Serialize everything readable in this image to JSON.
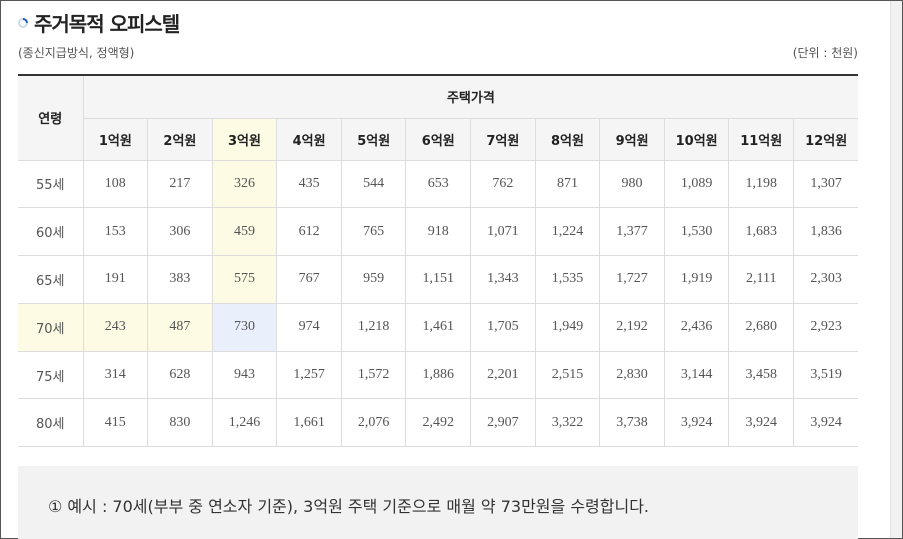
{
  "title": "주거목적 오피스텔",
  "subtitle_left": "(종신지급방식, 정액형)",
  "unit": "(단위 : 천원)",
  "table": {
    "age_header": "연령",
    "price_header": "주택가격",
    "columns": [
      "1억원",
      "2억원",
      "3억원",
      "4억원",
      "5억원",
      "6억원",
      "7억원",
      "8억원",
      "9억원",
      "10억원",
      "11억원",
      "12억원"
    ],
    "rows": [
      {
        "age": "55세",
        "values": [
          "108",
          "217",
          "326",
          "435",
          "544",
          "653",
          "762",
          "871",
          "980",
          "1,089",
          "1,198",
          "1,307"
        ]
      },
      {
        "age": "60세",
        "values": [
          "153",
          "306",
          "459",
          "612",
          "765",
          "918",
          "1,071",
          "1,224",
          "1,377",
          "1,530",
          "1,683",
          "1,836"
        ]
      },
      {
        "age": "65세",
        "values": [
          "191",
          "383",
          "575",
          "767",
          "959",
          "1,151",
          "1,343",
          "1,535",
          "1,727",
          "1,919",
          "2,111",
          "2,303"
        ]
      },
      {
        "age": "70세",
        "values": [
          "243",
          "487",
          "730",
          "974",
          "1,218",
          "1,461",
          "1,705",
          "1,949",
          "2,192",
          "2,436",
          "2,680",
          "2,923"
        ]
      },
      {
        "age": "75세",
        "values": [
          "314",
          "628",
          "943",
          "1,257",
          "1,572",
          "1,886",
          "2,201",
          "2,515",
          "2,830",
          "3,144",
          "3,458",
          "3,519"
        ]
      },
      {
        "age": "80세",
        "values": [
          "415",
          "830",
          "1,246",
          "1,661",
          "2,076",
          "2,492",
          "2,907",
          "3,322",
          "3,738",
          "3,924",
          "3,924",
          "3,924"
        ]
      }
    ]
  },
  "note": "① 예시 : 70세(부부 중 연소자 기준), 3억원 주택 기준으로 매월 약 73만원을 수령합니다.",
  "colors": {
    "highlight_yellow": "#fdfbe3",
    "highlight_blue": "#eaf0fb",
    "title_icon": "#1f5fb5"
  }
}
